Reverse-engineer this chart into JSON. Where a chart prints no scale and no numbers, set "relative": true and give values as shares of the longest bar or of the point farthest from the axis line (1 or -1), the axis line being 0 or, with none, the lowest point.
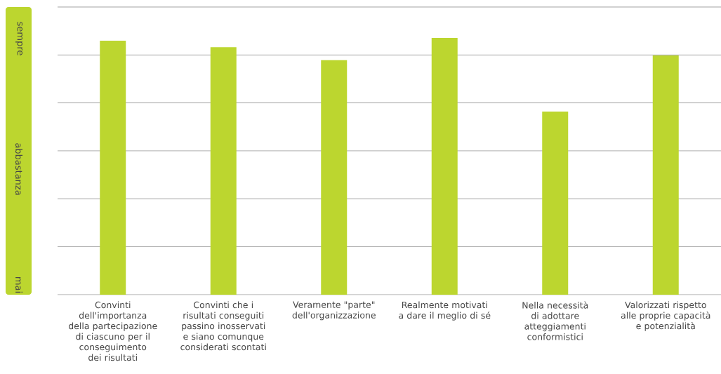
{
  "chart_data": {
    "type": "bar",
    "categories": [
      "Convinti dell'importanza della partecipazione di ciascuno per il conseguimento dei risultati",
      "Convinti che i risultati conseguiti passino inosservati e siano comunque considerati scontati",
      "Veramente \"parte\" dell'organizzazione",
      "Realmente motivati a dare il meglio di sé",
      "Nella necessità di adottare atteggiamenti conformistici",
      "Valorizzati rispetto alle proprie capacità e potenzialità"
    ],
    "values": [
      0.989,
      0.964,
      0.913,
      1,
      0.713,
      0.932
    ],
    "relative": true,
    "color": "#bcd62f",
    "annotations": [
      "sempre",
      "abbastanza",
      "mai"
    ],
    "grid": "y"
  }
}
